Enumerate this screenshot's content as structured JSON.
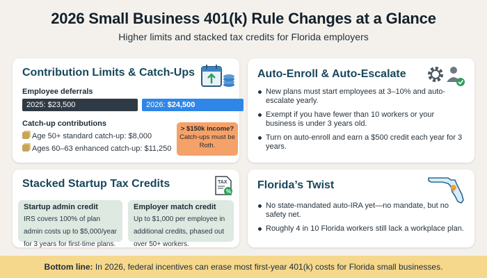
{
  "header": {
    "title": "2026 Small Business 401(k) Rule Changes at a Glance",
    "subtitle": "Higher limits and stacked tax credits for Florida employers"
  },
  "contrib": {
    "title": "Contribution Limits & Catch-Ups",
    "employee_deferrals_label": "Employee deferrals",
    "bar_2025": "2025: $23,500",
    "bar_2026_prefix": "2026: ",
    "bar_2026_value": "$24,500",
    "catchup_label": "Catch-up contributions",
    "catchup_rows": [
      "Age 50+ standard catch-up: $8,000",
      "Ages 60–63 enhanced catch-up: $11,250"
    ],
    "roth_title": "> $150k income?",
    "roth_body": "Catch-ups must be Roth.",
    "icon": "calendar-coins-icon",
    "colors": {
      "bar_2025": "#2f3a44",
      "bar_2026": "#2f86e6",
      "roth": "#f5a26a"
    }
  },
  "auto": {
    "title": "Auto-Enroll & Auto-Escalate",
    "icon": "gear-user-check-icon",
    "items": [
      "New plans must start employees at 3–10% and auto-escalate yearly.",
      "Exempt if you have fewer than 10 workers or your business is under 3 years old.",
      "Turn on auto-enroll and earn a $500 credit each year for 3 years."
    ]
  },
  "credits": {
    "title": "Stacked Startup Tax Credits",
    "icon": "tax-document-icon",
    "admin_title": "Startup admin credit",
    "admin_body": "IRS covers 100% of plan admin costs up to $5,000/year for 3 years for first-time plans.",
    "match_title": "Employer match credit",
    "match_body": "Up to $1,000 per employee in additional credits, phased out over 50+ workers."
  },
  "florida": {
    "title": "Florida’s Twist",
    "icon": "florida-map-icon",
    "items": [
      "No state-mandated auto-IRA yet—no mandate, but no safety net.",
      "Roughly 4 in 10 Florida workers still lack a workplace plan."
    ]
  },
  "bottom": {
    "label": "Bottom line:",
    "text": " In 2026, federal incentives can erase most first-year 401(k) costs for Florida small businesses."
  }
}
